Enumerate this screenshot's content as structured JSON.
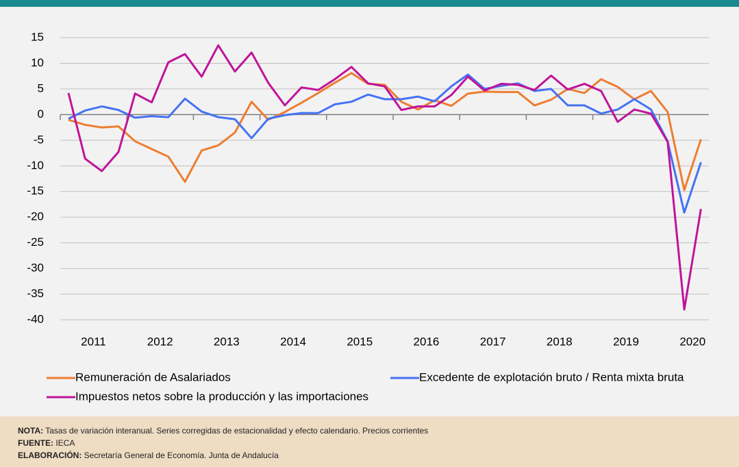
{
  "chart_data": {
    "type": "line",
    "categories": [
      null,
      "2011",
      null,
      null,
      null,
      "2012",
      null,
      null,
      null,
      "2013",
      null,
      null,
      null,
      "2014",
      null,
      null,
      null,
      "2015",
      null,
      null,
      null,
      "2016",
      null,
      null,
      null,
      "2017",
      null,
      null,
      null,
      "2018",
      null,
      null,
      null,
      "2019",
      null,
      null,
      null,
      "2020",
      null
    ],
    "series": [
      {
        "name": "Remuneración de Asalariados",
        "color": "#ed7d31",
        "values": [
          -1.0,
          -2.0,
          -2.5,
          -2.3,
          -5.2,
          -6.7,
          -8.2,
          -13.1,
          -7.0,
          -6.0,
          -3.5,
          2.5,
          -1.0,
          0.5,
          2.3,
          4.2,
          6.2,
          8.1,
          6.0,
          5.8,
          2.5,
          1.0,
          2.8,
          1.7,
          4.1,
          4.5,
          4.4,
          4.4,
          1.8,
          2.9,
          5.0,
          4.2,
          6.9,
          5.4,
          3.0,
          4.6,
          0.5,
          -14.7,
          -4.8
        ]
      },
      {
        "name": "Excedente de explotación bruto / Renta mixta bruta",
        "color": "#4472f4",
        "values": [
          -0.8,
          0.8,
          1.6,
          0.9,
          -0.6,
          -0.3,
          -0.5,
          3.1,
          0.6,
          -0.5,
          -0.9,
          -4.6,
          -0.8,
          -0.1,
          0.3,
          0.3,
          2.0,
          2.5,
          3.9,
          3.0,
          3.0,
          3.5,
          2.6,
          5.5,
          7.8,
          5.0,
          5.6,
          6.1,
          4.6,
          5.0,
          1.8,
          1.8,
          0.2,
          1.0,
          3.0,
          1.0,
          -5.2,
          -19.1,
          -9.3
        ]
      },
      {
        "name": "Impuestos netos sobre la producción y las importaciones",
        "color": "#c0139a",
        "values": [
          4.2,
          -8.6,
          -11.0,
          -7.3,
          4.1,
          2.4,
          10.2,
          11.8,
          7.4,
          13.5,
          8.4,
          12.1,
          6.2,
          1.8,
          5.3,
          4.8,
          6.9,
          9.3,
          6.1,
          5.5,
          0.9,
          1.6,
          1.6,
          3.8,
          7.4,
          4.7,
          6.0,
          5.8,
          4.8,
          7.6,
          4.9,
          6.0,
          4.6,
          -1.4,
          1.0,
          0.2,
          -5.3,
          -38.0,
          -18.4
        ]
      }
    ],
    "ylim": [
      -40,
      15
    ],
    "yticks": [
      -40,
      -35,
      -30,
      -25,
      -20,
      -15,
      -10,
      -5,
      0,
      5,
      10,
      15
    ],
    "grid": true
  },
  "notes": [
    {
      "label": "NOTA:",
      "text": "Tasas de variación interanual. Series corregidas de estacionalidad y efecto calendario. Precios corrientes"
    },
    {
      "label": "FUENTE:",
      "text": "IECA"
    },
    {
      "label": "ELABORACIÓN:",
      "text": "Secretaría General de Economía. Junta de Andalucía"
    }
  ]
}
